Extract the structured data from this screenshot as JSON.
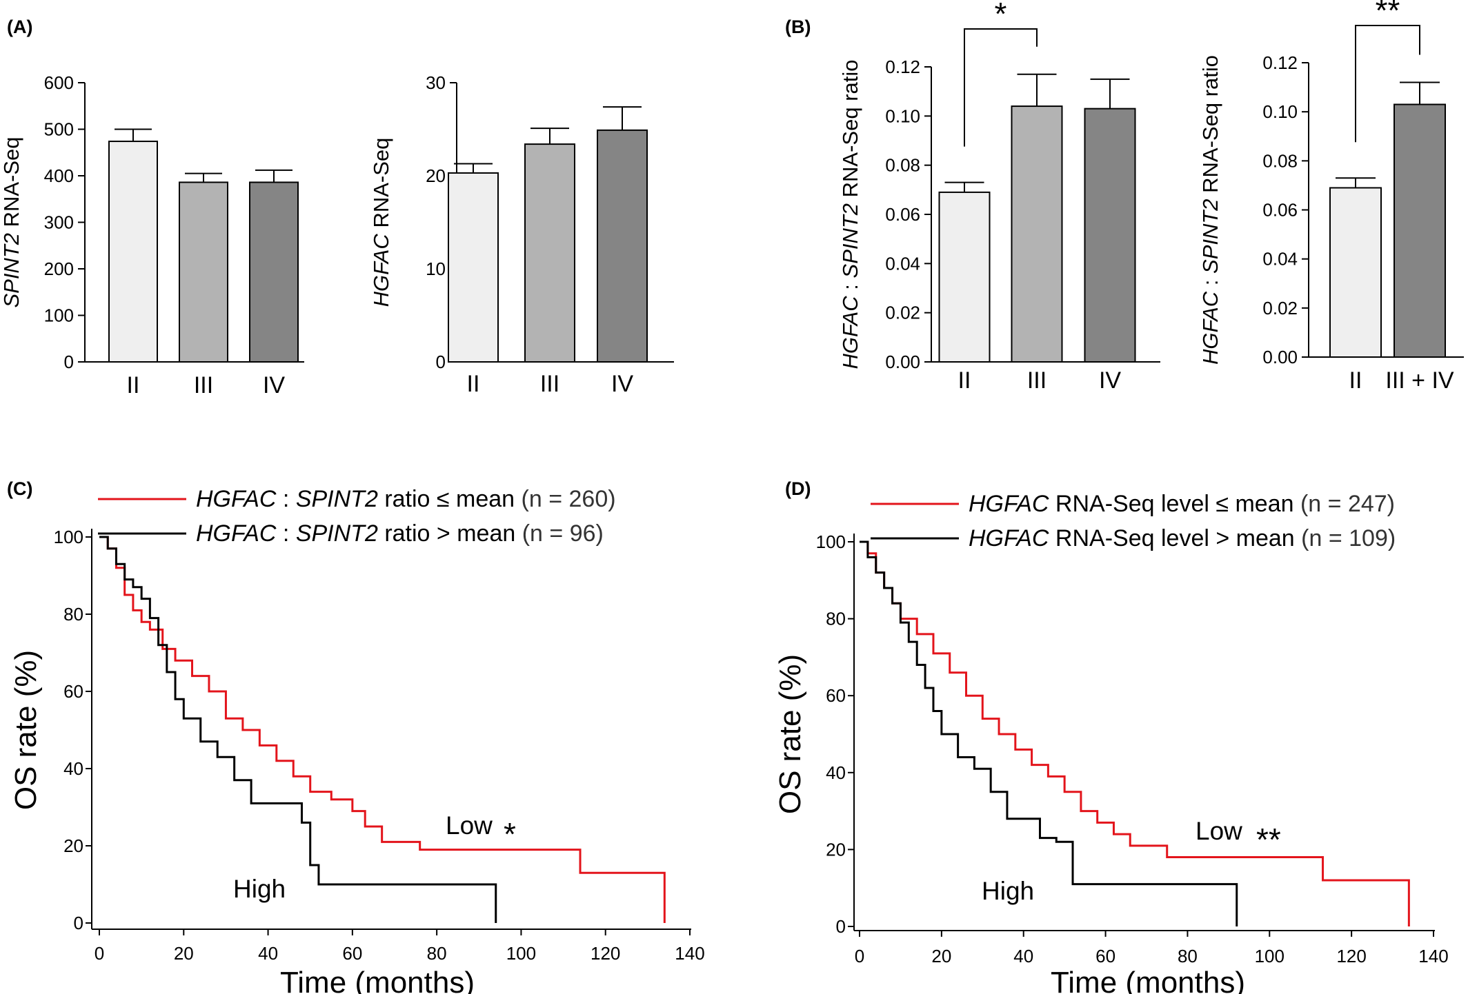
{
  "colors": {
    "low": "#e3141b",
    "high": "#000000",
    "bar_II": "#efefef",
    "bar_III": "#b3b3b3",
    "bar_IV": "#858585"
  },
  "panel_labels": [
    "(A)",
    "(B)",
    "(C)",
    "(D)"
  ],
  "chart_data": [
    {
      "panel": "(A)",
      "type": "bar",
      "ylabel_italic": "SPINT2",
      "ylabel_rest": " RNA-Seq",
      "categories": [
        "II",
        "III",
        "IV"
      ],
      "values": [
        474,
        386,
        386
      ],
      "errors": [
        26,
        19,
        26
      ],
      "ylim": [
        0,
        600
      ],
      "yticks": [
        "0",
        "100",
        "200",
        "300",
        "400",
        "500",
        "600"
      ]
    },
    {
      "panel": "(A)",
      "type": "bar",
      "ylabel_italic": "HGFAC",
      "ylabel_rest": " RNA-Seq",
      "categories": [
        "II",
        "III",
        "IV"
      ],
      "values": [
        20.3,
        23.4,
        24.9
      ],
      "errors": [
        1.0,
        1.7,
        2.5
      ],
      "ylim": [
        0,
        30
      ],
      "yticks": [
        "0",
        "10",
        "20",
        "30"
      ]
    },
    {
      "panel": "(B)",
      "type": "bar",
      "ylabel_italic1": "HGFAC",
      "ylabel_mid": " : ",
      "ylabel_italic2": "SPINT2",
      "ylabel_rest": " RNA-Seq ratio",
      "categories": [
        "II",
        "III",
        "IV"
      ],
      "values": [
        0.069,
        0.104,
        0.103
      ],
      "errors": [
        0.004,
        0.013,
        0.012
      ],
      "ylim": [
        0,
        0.12
      ],
      "yticks": [
        "0.00",
        "0.02",
        "0.04",
        "0.06",
        "0.08",
        "0.10",
        "0.12"
      ],
      "significance": {
        "from": "II",
        "to": "III",
        "label": "*"
      }
    },
    {
      "panel": "(B)",
      "type": "bar",
      "ylabel_italic1": "HGFAC",
      "ylabel_mid": " : ",
      "ylabel_italic2": "SPINT2",
      "ylabel_rest": " RNA-Seq ratio",
      "categories": [
        "II",
        "III + IV"
      ],
      "values": [
        0.069,
        0.103
      ],
      "errors": [
        0.004,
        0.009
      ],
      "ylim": [
        0,
        0.12
      ],
      "yticks": [
        "0.00",
        "0.02",
        "0.04",
        "0.06",
        "0.08",
        "0.10",
        "0.12"
      ],
      "significance": {
        "from": "II",
        "to": "III + IV",
        "label": "**"
      }
    },
    {
      "panel": "(C)",
      "type": "line",
      "ylabel": "OS rate (%)",
      "xlabel": "Time (months)",
      "xlim": [
        0,
        140
      ],
      "ylim": [
        0,
        100
      ],
      "xticks": [
        "0",
        "20",
        "40",
        "60",
        "80",
        "100",
        "120",
        "140"
      ],
      "yticks": [
        "0",
        "20",
        "40",
        "60",
        "80",
        "100"
      ],
      "legend": [
        {
          "italic1": "HGFAC",
          "mid": " : ",
          "italic2": "SPINT2",
          "rest": " ratio ≤ mean",
          "n": "(n = 260)"
        },
        {
          "italic1": "HGFAC",
          "mid": " : ",
          "italic2": "SPINT2",
          "rest": " ratio > mean",
          "n": "(n = 96)"
        }
      ],
      "annotations": {
        "low": "Low",
        "low_star": "*",
        "high": "High"
      },
      "series": [
        {
          "name": "HGFAC : SPINT2 ratio ≤ mean (n = 260)",
          "x": [
            0,
            2,
            4,
            6,
            8,
            10,
            12,
            15,
            18,
            22,
            26,
            30,
            34,
            38,
            42,
            46,
            50,
            55,
            60,
            63,
            67,
            76,
            96,
            114,
            134,
            134
          ],
          "y": [
            100,
            97,
            92,
            85,
            81,
            78,
            76,
            71,
            68,
            64,
            60,
            53,
            50,
            46,
            42,
            38,
            34,
            32,
            29,
            25,
            21,
            19,
            19,
            13,
            13,
            0
          ]
        },
        {
          "name": "HGFAC : SPINT2 ratio > mean (n = 96)",
          "x": [
            0,
            2,
            4,
            6,
            8,
            10,
            12,
            14,
            16,
            18,
            20,
            24,
            28,
            32,
            36,
            40,
            44,
            48,
            50,
            52,
            60,
            80,
            94,
            94
          ],
          "y": [
            100,
            97,
            93,
            89,
            87,
            84,
            79,
            72,
            65,
            58,
            53,
            47,
            43,
            37,
            31,
            31,
            31,
            26,
            15,
            10,
            10,
            10,
            10,
            0
          ]
        }
      ]
    },
    {
      "panel": "(D)",
      "type": "line",
      "ylabel": "OS rate (%)",
      "xlabel": "Time (months)",
      "xlim": [
        0,
        140
      ],
      "ylim": [
        0,
        100
      ],
      "xticks": [
        "0",
        "20",
        "40",
        "60",
        "80",
        "100",
        "120",
        "140"
      ],
      "yticks": [
        "0",
        "20",
        "40",
        "60",
        "80",
        "100"
      ],
      "legend": [
        {
          "italic1": "HGFAC",
          "rest": " RNA-Seq level ≤ mean",
          "n": "(n = 247)"
        },
        {
          "italic1": "HGFAC",
          "rest": " RNA-Seq level > mean",
          "n": "(n = 109)"
        }
      ],
      "annotations": {
        "low": "Low",
        "low_star": "**",
        "high": "High"
      },
      "series": [
        {
          "name": "HGFAC RNA-Seq level ≤ mean (n = 247)",
          "x": [
            0,
            2,
            4,
            6,
            8,
            10,
            14,
            18,
            22,
            26,
            30,
            34,
            38,
            42,
            46,
            50,
            54,
            58,
            62,
            66,
            75,
            96,
            113,
            134,
            134
          ],
          "y": [
            100,
            97,
            92,
            88,
            84,
            80,
            76,
            71,
            66,
            60,
            54,
            50,
            46,
            42,
            39,
            35,
            30,
            27,
            24,
            21,
            18,
            18,
            12,
            12,
            0
          ]
        },
        {
          "name": "HGFAC RNA-Seq level > mean (n = 109)",
          "x": [
            0,
            2,
            4,
            6,
            8,
            10,
            12,
            14,
            16,
            18,
            20,
            24,
            28,
            32,
            36,
            40,
            44,
            48,
            52,
            60,
            80,
            92,
            92
          ],
          "y": [
            100,
            96,
            92,
            88,
            84,
            79,
            74,
            68,
            62,
            56,
            50,
            44,
            41,
            35,
            28,
            28,
            23,
            22,
            11,
            11,
            11,
            11,
            0
          ]
        }
      ]
    }
  ]
}
